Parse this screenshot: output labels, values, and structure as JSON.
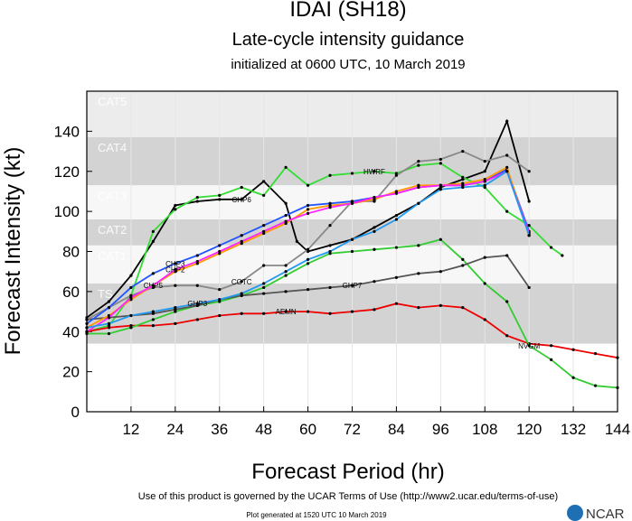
{
  "chart_data": {
    "type": "line",
    "title": "IDAI (SH18)",
    "subtitle": "Late-cycle intensity guidance",
    "subtitle2": "initialized at 0600 UTC, 10 March 2019",
    "x_label": "Forecast Period (hr)",
    "y_label": "Forecast Intensity (kt)",
    "footer": "Use of this product is governed by the UCAR Terms of Use (http://www2.ucar.edu/terms-of-use)",
    "footer2": "Plot generated at 1520 UTC   10 March 2019",
    "logo": "NCAR",
    "xlim": [
      0,
      144
    ],
    "ylim": [
      0,
      160
    ],
    "xticks": [
      12,
      24,
      36,
      48,
      60,
      72,
      84,
      96,
      108,
      120,
      132,
      144
    ],
    "yticks": [
      0,
      20,
      40,
      60,
      80,
      100,
      120,
      140
    ],
    "grid": true,
    "bands": [
      {
        "label": "CAT5",
        "min": 137,
        "max": 160,
        "color": "#ececec"
      },
      {
        "label": "CAT4",
        "min": 113,
        "max": 137,
        "color": "#d3d3d3"
      },
      {
        "label": "CAT3",
        "min": 96,
        "max": 113,
        "color": "#f7f7f7"
      },
      {
        "label": "CAT2",
        "min": 83,
        "max": 96,
        "color": "#d3d3d3"
      },
      {
        "label": "CAT1",
        "min": 64,
        "max": 83,
        "color": "#f7f7f7"
      },
      {
        "label": "TS",
        "min": 34,
        "max": 64,
        "color": "#d3d3d3"
      }
    ],
    "series": [
      {
        "name": "CHP6",
        "color": "#000000",
        "x": [
          0,
          6,
          12,
          18,
          24,
          30,
          36,
          42,
          48,
          54,
          57,
          60,
          66,
          72,
          78,
          84,
          90,
          96,
          102,
          108,
          114,
          120
        ],
        "values": [
          47,
          55,
          68,
          85,
          103,
          105,
          106,
          106,
          115,
          104,
          85,
          80,
          83,
          86,
          92,
          98,
          104,
          112,
          116,
          120,
          145,
          105
        ]
      },
      {
        "name": "HWRF",
        "color": "#33dd33",
        "x": [
          0,
          6,
          12,
          18,
          24,
          30,
          36,
          42,
          48,
          54,
          60,
          66,
          72,
          78,
          84,
          90,
          96,
          102,
          108,
          114,
          120,
          126,
          129
        ],
        "values": [
          40,
          43,
          58,
          90,
          101,
          107,
          108,
          112,
          108,
          122,
          113,
          118,
          119,
          120,
          119,
          123,
          124,
          117,
          112,
          100,
          93,
          82,
          78
        ]
      },
      {
        "name": "AEMN",
        "color": "#ee0000",
        "x": [
          0,
          6,
          12,
          18,
          24,
          30,
          36,
          42,
          48,
          54,
          60,
          66,
          72,
          78,
          84,
          90,
          96,
          102,
          108,
          114,
          120,
          126,
          132,
          138,
          144
        ],
        "values": [
          40,
          42,
          43,
          43,
          44,
          46,
          48,
          49,
          49,
          50,
          50,
          49,
          50,
          51,
          54,
          52,
          53,
          52,
          46,
          38,
          34,
          33,
          31,
          29,
          27
        ]
      },
      {
        "name": "NVGM",
        "color": "#33cc33",
        "x": [
          0,
          6,
          12,
          18,
          24,
          30,
          36,
          42,
          48,
          54,
          60,
          66,
          72,
          78,
          84,
          90,
          96,
          102,
          108,
          114,
          120,
          126,
          132,
          138,
          144
        ],
        "values": [
          39,
          39,
          42,
          46,
          50,
          53,
          55,
          58,
          62,
          68,
          74,
          79,
          80,
          81,
          82,
          83,
          86,
          76,
          64,
          55,
          33,
          26,
          17,
          13,
          12
        ]
      },
      {
        "name": "GHP7",
        "color": "#555555",
        "x": [
          0,
          6,
          12,
          18,
          24,
          30,
          36,
          42,
          48,
          54,
          60,
          66,
          72,
          78,
          84,
          90,
          96,
          102,
          108,
          114,
          120
        ],
        "values": [
          46,
          47,
          48,
          49,
          51,
          53,
          56,
          58,
          59,
          60,
          61,
          62,
          63,
          65,
          67,
          69,
          70,
          73,
          77,
          78,
          62
        ]
      },
      {
        "name": "COTC",
        "color": "#888888",
        "x": [
          0,
          6,
          12,
          18,
          24,
          30,
          36,
          42,
          48,
          54,
          60,
          66,
          72,
          78,
          84,
          90,
          96,
          102,
          108,
          114,
          120
        ],
        "values": [
          46,
          52,
          58,
          62,
          63,
          63,
          61,
          65,
          73,
          73,
          81,
          93,
          105,
          105,
          118,
          125,
          126,
          130,
          125,
          128,
          120
        ]
      },
      {
        "name": "CHP3",
        "color": "#2255ff",
        "x": [
          0,
          6,
          12,
          18,
          24,
          30,
          36,
          42,
          48,
          54,
          60,
          66,
          72,
          78,
          84,
          90,
          96,
          102,
          108,
          114,
          120
        ],
        "values": [
          44,
          52,
          62,
          69,
          74,
          78,
          83,
          88,
          93,
          98,
          103,
          104,
          105,
          107,
          109,
          112,
          113,
          113,
          115,
          121,
          90
        ]
      },
      {
        "name": "CHP5",
        "color": "#ff9900",
        "x": [
          0,
          6,
          12,
          18,
          24,
          30,
          36,
          42,
          48,
          54,
          60,
          66,
          72,
          78,
          84,
          90,
          96,
          102,
          108,
          114,
          120
        ],
        "values": [
          42,
          48,
          56,
          63,
          70,
          74,
          79,
          84,
          89,
          94,
          101,
          103,
          104,
          106,
          110,
          113,
          113,
          114,
          116,
          122,
          88
        ]
      },
      {
        "name": "CHP2",
        "color": "#ff22ff",
        "x": [
          0,
          6,
          12,
          18,
          24,
          30,
          36,
          42,
          48,
          54,
          60,
          66,
          72,
          78,
          84,
          90,
          96,
          102,
          108,
          114,
          120
        ],
        "values": [
          40,
          47,
          57,
          63,
          71,
          75,
          80,
          85,
          90,
          95,
          99,
          102,
          104,
          107,
          109,
          112,
          113,
          113,
          115,
          120,
          89
        ]
      },
      {
        "name": "GHP3",
        "color": "#2299ee",
        "x": [
          0,
          6,
          12,
          18,
          24,
          30,
          36,
          42,
          48,
          54,
          60,
          66,
          72,
          78,
          84,
          90,
          96,
          102,
          108,
          114,
          120
        ],
        "values": [
          42,
          44,
          48,
          50,
          52,
          54,
          56,
          59,
          64,
          70,
          76,
          80,
          86,
          90,
          96,
          104,
          111,
          112,
          113,
          120,
          88
        ]
      }
    ]
  }
}
